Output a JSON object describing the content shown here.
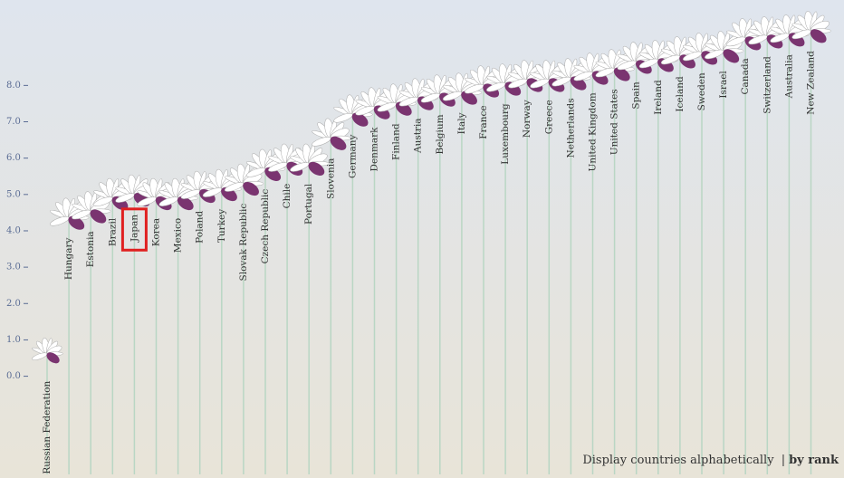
{
  "chart_data": {
    "type": "flower",
    "categories": [
      "Russian Federation",
      "Hungary",
      "Estonia",
      "Brazil",
      "Japan",
      "Korea",
      "Mexico",
      "Poland",
      "Turkey",
      "Slovak Republic",
      "Czech Republic",
      "Chile",
      "Portugal",
      "Slovenia",
      "Germany",
      "Denmark",
      "Finland",
      "Austria",
      "Belgium",
      "Italy",
      "France",
      "Luxembourg",
      "Norway",
      "Greece",
      "Netherlands",
      "United Kingdom",
      "United States",
      "Spain",
      "Ireland",
      "Iceland",
      "Sweden",
      "Israel",
      "Canada",
      "Switzerland",
      "Australia",
      "New Zealand"
    ],
    "values": [
      0.62,
      4.36,
      4.54,
      4.9,
      5.0,
      4.9,
      4.9,
      5.1,
      5.15,
      5.3,
      5.7,
      5.85,
      5.85,
      6.55,
      7.2,
      7.4,
      7.5,
      7.65,
      7.75,
      7.8,
      8.0,
      8.05,
      8.15,
      8.15,
      8.2,
      8.35,
      8.45,
      8.65,
      8.7,
      8.8,
      8.9,
      8.95,
      9.3,
      9.35,
      9.4,
      9.5
    ],
    "ylim": [
      -2.7,
      10.35
    ],
    "yticks": [
      {
        "value": 0,
        "label": "0.0"
      },
      {
        "value": 1,
        "label": "1.0"
      },
      {
        "value": 2,
        "label": "2.0"
      },
      {
        "value": 3,
        "label": "3.0"
      },
      {
        "value": 4,
        "label": "4.0"
      },
      {
        "value": 5,
        "label": "5.0"
      },
      {
        "value": 6,
        "label": "6.0"
      },
      {
        "value": 7,
        "label": "7.0"
      },
      {
        "value": 8,
        "label": "8.0"
      }
    ],
    "selected": "Japan",
    "petal_color": "#ffffff",
    "highlight_color": "#7a3470",
    "stem_color": "#b9d6c4",
    "selection_color": "#e02020"
  },
  "controls": {
    "label": "Display countries",
    "options": [
      "alphabetically",
      "by rank"
    ],
    "separator": "|"
  }
}
